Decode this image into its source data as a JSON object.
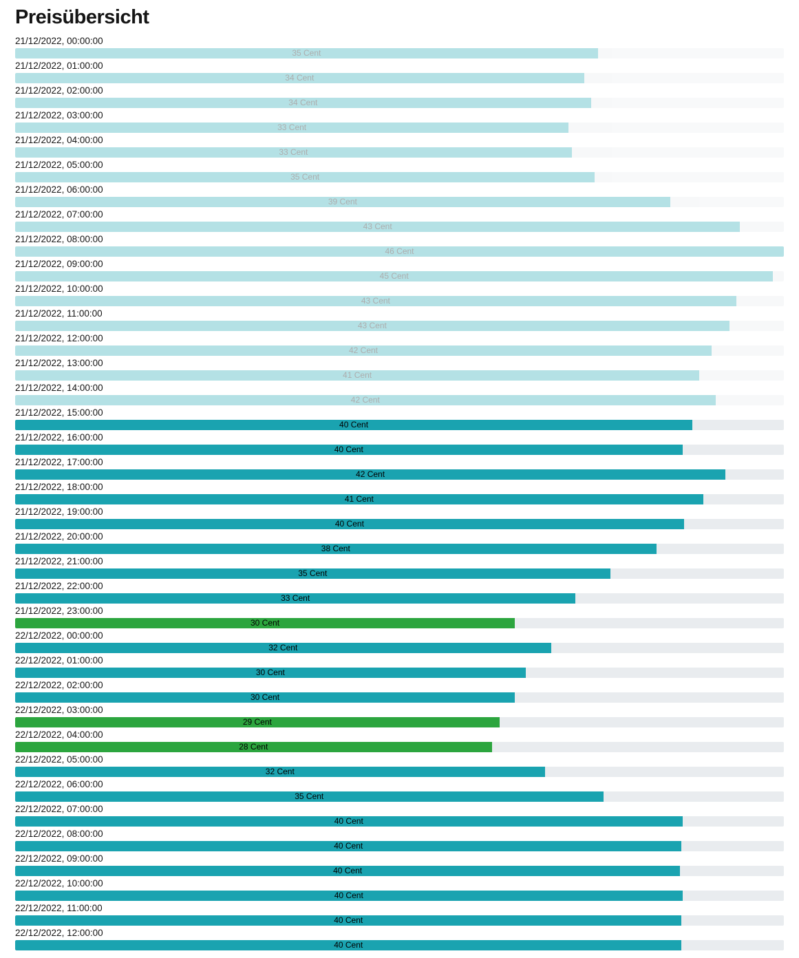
{
  "page": {
    "title": "Preisübersicht"
  },
  "colors": {
    "bar_normal": "#1aa3b0",
    "bar_cheap": "#2ca53e",
    "track": "#e9ecef"
  },
  "chart_data": {
    "type": "bar",
    "orientation": "horizontal",
    "title": "Preisübersicht",
    "unit": "Cent",
    "xlim": [
      0,
      46
    ],
    "legend": "none",
    "grid": false,
    "bars": [
      {
        "time": "21/12/2022, 00:00:00",
        "value": 35,
        "label": "35 Cent",
        "pct": 75.8,
        "variant": "normal",
        "past": true
      },
      {
        "time": "21/12/2022, 01:00:00",
        "value": 34,
        "label": "34 Cent",
        "pct": 74.0,
        "variant": "normal",
        "past": true
      },
      {
        "time": "21/12/2022, 02:00:00",
        "value": 34,
        "label": "34 Cent",
        "pct": 74.9,
        "variant": "normal",
        "past": true
      },
      {
        "time": "21/12/2022, 03:00:00",
        "value": 33,
        "label": "33 Cent",
        "pct": 72.0,
        "variant": "normal",
        "past": true
      },
      {
        "time": "21/12/2022, 04:00:00",
        "value": 33,
        "label": "33 Cent",
        "pct": 72.4,
        "variant": "normal",
        "past": true
      },
      {
        "time": "21/12/2022, 05:00:00",
        "value": 35,
        "label": "35 Cent",
        "pct": 75.4,
        "variant": "normal",
        "past": true
      },
      {
        "time": "21/12/2022, 06:00:00",
        "value": 39,
        "label": "39 Cent",
        "pct": 85.2,
        "variant": "normal",
        "past": true
      },
      {
        "time": "21/12/2022, 07:00:00",
        "value": 43,
        "label": "43 Cent",
        "pct": 94.3,
        "variant": "normal",
        "past": true
      },
      {
        "time": "21/12/2022, 08:00:00",
        "value": 46,
        "label": "46 Cent",
        "pct": 100,
        "variant": "normal",
        "past": true
      },
      {
        "time": "21/12/2022, 09:00:00",
        "value": 45,
        "label": "45 Cent",
        "pct": 98.6,
        "variant": "normal",
        "past": true
      },
      {
        "time": "21/12/2022, 10:00:00",
        "value": 43,
        "label": "43 Cent",
        "pct": 93.8,
        "variant": "normal",
        "past": true
      },
      {
        "time": "21/12/2022, 11:00:00",
        "value": 43,
        "label": "43 Cent",
        "pct": 92.9,
        "variant": "normal",
        "past": true
      },
      {
        "time": "21/12/2022, 12:00:00",
        "value": 42,
        "label": "42 Cent",
        "pct": 90.6,
        "variant": "normal",
        "past": true
      },
      {
        "time": "21/12/2022, 13:00:00",
        "value": 41,
        "label": "41 Cent",
        "pct": 89.0,
        "variant": "normal",
        "past": true
      },
      {
        "time": "21/12/2022, 14:00:00",
        "value": 42,
        "label": "42 Cent",
        "pct": 91.1,
        "variant": "normal",
        "past": true
      },
      {
        "time": "21/12/2022, 15:00:00",
        "value": 40,
        "label": "40 Cent",
        "pct": 88.1,
        "variant": "normal",
        "past": false
      },
      {
        "time": "21/12/2022, 16:00:00",
        "value": 40,
        "label": "40 Cent",
        "pct": 86.8,
        "variant": "normal",
        "past": false
      },
      {
        "time": "21/12/2022, 17:00:00",
        "value": 42,
        "label": "42 Cent",
        "pct": 92.4,
        "variant": "normal",
        "past": false
      },
      {
        "time": "21/12/2022, 18:00:00",
        "value": 41,
        "label": "41 Cent",
        "pct": 89.5,
        "variant": "normal",
        "past": false
      },
      {
        "time": "21/12/2022, 19:00:00",
        "value": 40,
        "label": "40 Cent",
        "pct": 87.0,
        "variant": "normal",
        "past": false
      },
      {
        "time": "21/12/2022, 20:00:00",
        "value": 38,
        "label": "38 Cent",
        "pct": 83.4,
        "variant": "normal",
        "past": false
      },
      {
        "time": "21/12/2022, 21:00:00",
        "value": 35,
        "label": "35 Cent",
        "pct": 77.4,
        "variant": "normal",
        "past": false
      },
      {
        "time": "21/12/2022, 22:00:00",
        "value": 33,
        "label": "33 Cent",
        "pct": 72.9,
        "variant": "normal",
        "past": false
      },
      {
        "time": "21/12/2022, 23:00:00",
        "value": 30,
        "label": "30 Cent",
        "pct": 65.0,
        "variant": "cheap",
        "past": false
      },
      {
        "time": "22/12/2022, 00:00:00",
        "value": 32,
        "label": "32 Cent",
        "pct": 69.7,
        "variant": "normal",
        "past": false
      },
      {
        "time": "22/12/2022, 01:00:00",
        "value": 30,
        "label": "30 Cent",
        "pct": 66.4,
        "variant": "normal",
        "past": false
      },
      {
        "time": "22/12/2022, 02:00:00",
        "value": 30,
        "label": "30 Cent",
        "pct": 65.0,
        "variant": "normal",
        "past": false
      },
      {
        "time": "22/12/2022, 03:00:00",
        "value": 29,
        "label": "29 Cent",
        "pct": 63.0,
        "variant": "cheap",
        "past": false
      },
      {
        "time": "22/12/2022, 04:00:00",
        "value": 28,
        "label": "28 Cent",
        "pct": 62.0,
        "variant": "cheap",
        "past": false
      },
      {
        "time": "22/12/2022, 05:00:00",
        "value": 32,
        "label": "32 Cent",
        "pct": 68.9,
        "variant": "normal",
        "past": false
      },
      {
        "time": "22/12/2022, 06:00:00",
        "value": 35,
        "label": "35 Cent",
        "pct": 76.5,
        "variant": "normal",
        "past": false
      },
      {
        "time": "22/12/2022, 07:00:00",
        "value": 40,
        "label": "40 Cent",
        "pct": 86.8,
        "variant": "normal",
        "past": false
      },
      {
        "time": "22/12/2022, 08:00:00",
        "value": 40,
        "label": "40 Cent",
        "pct": 86.7,
        "variant": "normal",
        "past": false
      },
      {
        "time": "22/12/2022, 09:00:00",
        "value": 40,
        "label": "40 Cent",
        "pct": 86.5,
        "variant": "normal",
        "past": false
      },
      {
        "time": "22/12/2022, 10:00:00",
        "value": 40,
        "label": "40 Cent",
        "pct": 86.8,
        "variant": "normal",
        "past": false
      },
      {
        "time": "22/12/2022, 11:00:00",
        "value": 40,
        "label": "40 Cent",
        "pct": 86.7,
        "variant": "normal",
        "past": false
      },
      {
        "time": "22/12/2022, 12:00:00",
        "value": 40,
        "label": "40 Cent",
        "pct": 86.7,
        "variant": "normal",
        "past": false
      }
    ]
  }
}
